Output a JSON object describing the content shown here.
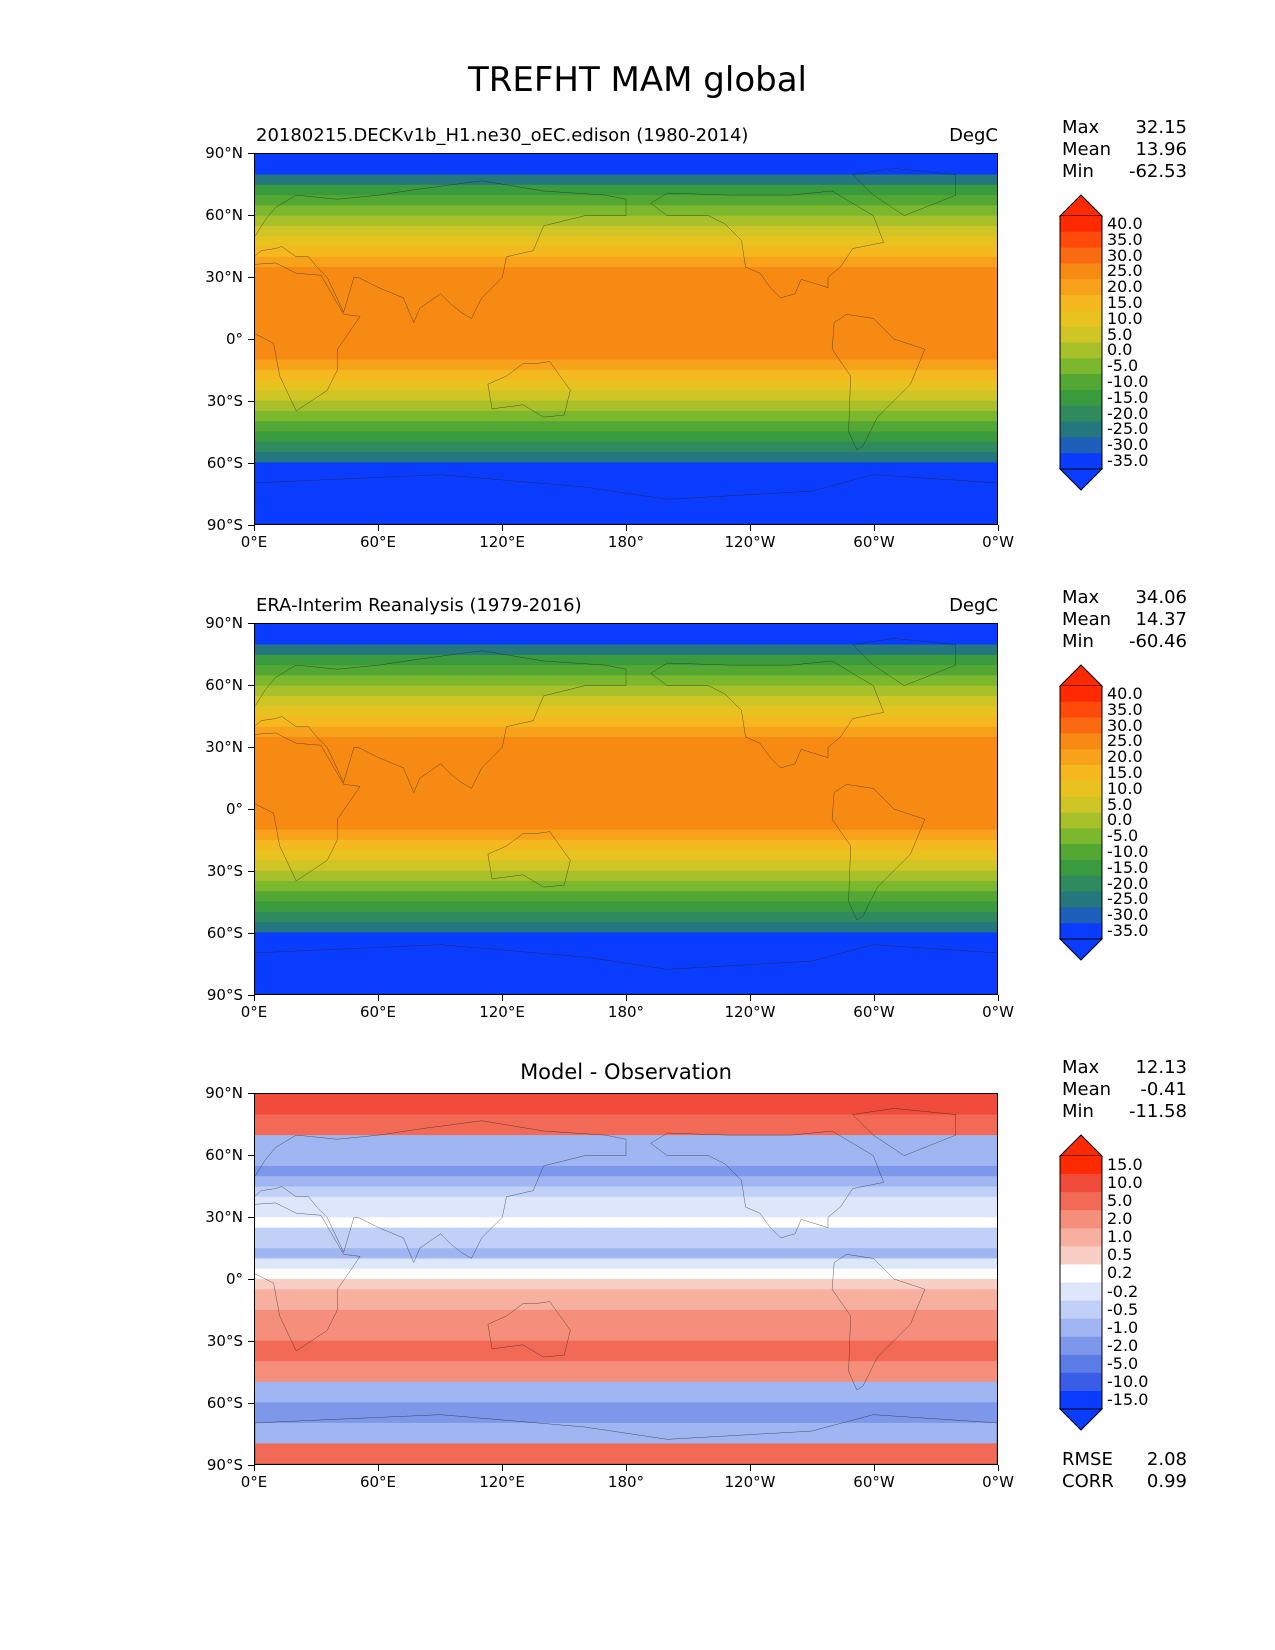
{
  "figure_title": "TREFHT MAM global",
  "axis_ticks": {
    "lat": [
      "90°N",
      "60°N",
      "30°N",
      "0°",
      "30°S",
      "60°S",
      "90°S"
    ],
    "lon": [
      "0°E",
      "60°E",
      "120°E",
      "180°",
      "120°W",
      "60°W",
      "0°W"
    ]
  },
  "panels": [
    {
      "title_left": "20180215.DECKv1b_H1.ne30_oEC.edison (1980-2014)",
      "units": "DegC",
      "stats": {
        "max_label": "Max",
        "max": "32.15",
        "mean_label": "Mean",
        "mean": "13.96",
        "min_label": "Min",
        "min": "-62.53"
      },
      "colorbar_labels": [
        "40.0",
        "35.0",
        "30.0",
        "25.0",
        "20.0",
        "15.0",
        "10.0",
        "5.0",
        "0.0",
        "-5.0",
        "-10.0",
        "-15.0",
        "-20.0",
        "-25.0",
        "-30.0",
        "-35.0"
      ]
    },
    {
      "title_left": "ERA-Interim Reanalysis (1979-2016)",
      "units": "DegC",
      "stats": {
        "max_label": "Max",
        "max": "34.06",
        "mean_label": "Mean",
        "mean": "14.37",
        "min_label": "Min",
        "min": "-60.46"
      },
      "colorbar_labels": [
        "40.0",
        "35.0",
        "30.0",
        "25.0",
        "20.0",
        "15.0",
        "10.0",
        "5.0",
        "0.0",
        "-5.0",
        "-10.0",
        "-15.0",
        "-20.0",
        "-25.0",
        "-30.0",
        "-35.0"
      ]
    },
    {
      "title_center": "Model - Observation",
      "stats": {
        "max_label": "Max",
        "max": "12.13",
        "mean_label": "Mean",
        "mean": "-0.41",
        "min_label": "Min",
        "min": "-11.58"
      },
      "colorbar_labels": [
        "15.0",
        "10.0",
        "5.0",
        "2.0",
        "1.0",
        "0.5",
        "0.2",
        "-0.2",
        "-0.5",
        "-1.0",
        "-2.0",
        "-5.0",
        "-10.0",
        "-15.0"
      ],
      "metrics": {
        "rmse_label": "RMSE",
        "rmse": "2.08",
        "corr_label": "CORR",
        "corr": "0.99"
      }
    }
  ],
  "colors": {
    "temperature_scale": [
      "#ff2a00",
      "#ff4a0a",
      "#f96a12",
      "#f78a12",
      "#f7a21a",
      "#f5b81f",
      "#e8c320",
      "#cfc524",
      "#a8c02a",
      "#7cb82e",
      "#52a832",
      "#3a9a3e",
      "#2f8a5e",
      "#25777e",
      "#1e5fba",
      "#0a3cff"
    ],
    "difference_scale": [
      "#ff2a00",
      "#f04a3a",
      "#f26a55",
      "#f58f7c",
      "#f7afa0",
      "#f9cfc5",
      "#ffffff",
      "#dde6fb",
      "#c0d0f7",
      "#a0b6f2",
      "#7d97ea",
      "#5b7be5",
      "#3a5de8",
      "#0a3cff"
    ],
    "coastline": "#222222"
  },
  "chart_data": [
    {
      "type": "heatmap",
      "title": "20180215.DECKv1b_H1.ne30_oEC.edison (1980-2014)",
      "variable": "TREFHT",
      "season": "MAM",
      "units": "DegC",
      "xlim": [
        0,
        360
      ],
      "ylim": [
        -90,
        90
      ],
      "levels": [
        -35,
        -30,
        -25,
        -20,
        -15,
        -10,
        -5,
        0,
        5,
        10,
        15,
        20,
        25,
        30,
        35,
        40
      ],
      "colorbar_extend": "both",
      "max": 32.15,
      "mean": 13.96,
      "min": -62.53
    },
    {
      "type": "heatmap",
      "title": "ERA-Interim Reanalysis (1979-2016)",
      "variable": "TREFHT",
      "season": "MAM",
      "units": "DegC",
      "xlim": [
        0,
        360
      ],
      "ylim": [
        -90,
        90
      ],
      "levels": [
        -35,
        -30,
        -25,
        -20,
        -15,
        -10,
        -5,
        0,
        5,
        10,
        15,
        20,
        25,
        30,
        35,
        40
      ],
      "colorbar_extend": "both",
      "max": 34.06,
      "mean": 14.37,
      "min": -60.46
    },
    {
      "type": "heatmap",
      "title": "Model - Observation",
      "xlim": [
        0,
        360
      ],
      "ylim": [
        -90,
        90
      ],
      "levels": [
        -15,
        -10,
        -5,
        -2,
        -1,
        -0.5,
        -0.2,
        0.2,
        0.5,
        1,
        2,
        5,
        10,
        15
      ],
      "colorbar_extend": "both",
      "max": 12.13,
      "mean": -0.41,
      "min": -11.58,
      "rmse": 2.08,
      "corr": 0.99
    }
  ]
}
